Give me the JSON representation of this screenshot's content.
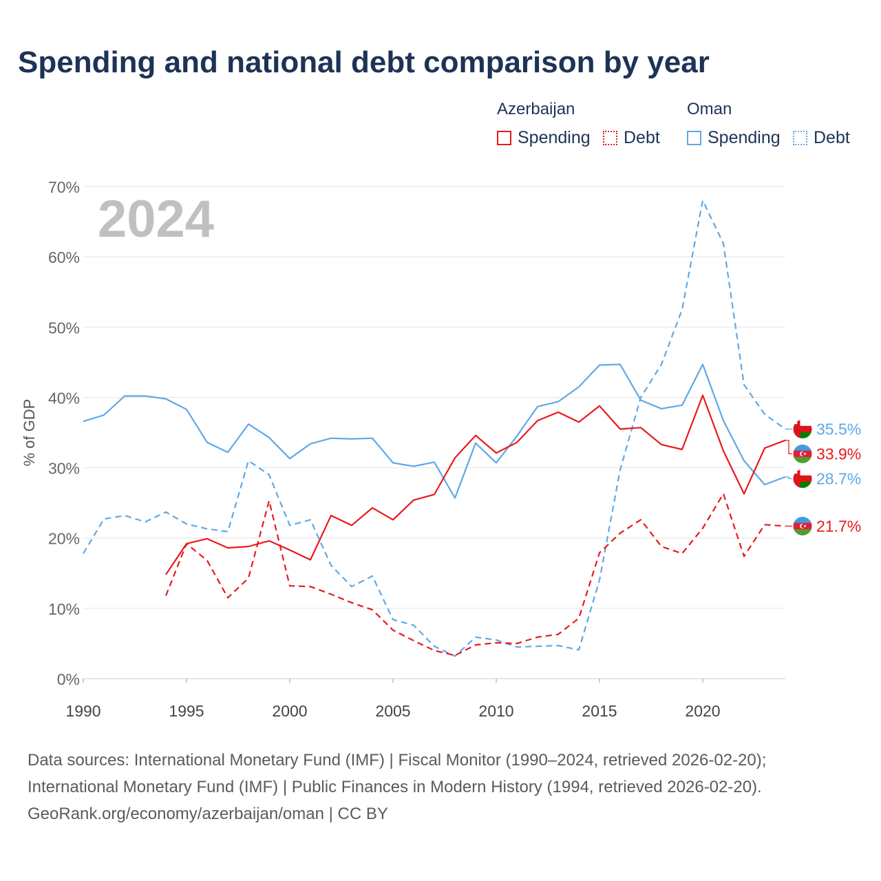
{
  "title": "Spending and national debt comparison by year",
  "legend": {
    "group1": "Azerbaijan",
    "group2": "Oman",
    "spending": "Spending",
    "debt": "Debt"
  },
  "colors": {
    "azerbaijan": "#e8191c",
    "oman": "#5ea8e6"
  },
  "chart_data": {
    "type": "line",
    "ylabel": "% of GDP",
    "xlim": [
      1990,
      2024
    ],
    "ylim": [
      0,
      70
    ],
    "x_ticks": [
      1990,
      1995,
      2000,
      2005,
      2010,
      2015,
      2020
    ],
    "y_ticks": [
      0,
      10,
      20,
      30,
      40,
      50,
      60,
      70
    ],
    "y_tick_labels": [
      "0%",
      "10%",
      "20%",
      "30%",
      "40%",
      "50%",
      "60%",
      "70%"
    ],
    "year_label": "2024",
    "series": [
      {
        "name": "Oman Spending",
        "country": "Oman",
        "metric": "Spending",
        "dashed": false,
        "end_label": "28.7%",
        "x": [
          1990,
          1991,
          1992,
          1993,
          1994,
          1995,
          1996,
          1997,
          1998,
          1999,
          2000,
          2001,
          2002,
          2003,
          2004,
          2005,
          2006,
          2007,
          2008,
          2009,
          2010,
          2011,
          2012,
          2013,
          2014,
          2015,
          2016,
          2017,
          2018,
          2019,
          2020,
          2021,
          2022,
          2023,
          2024
        ],
        "values": [
          36.6,
          37.5,
          40.2,
          40.2,
          39.8,
          38.3,
          33.6,
          32.2,
          36.2,
          34.3,
          31.3,
          33.4,
          34.2,
          34.1,
          34.2,
          30.7,
          30.2,
          30.8,
          25.7,
          33.5,
          30.7,
          34.5,
          38.7,
          39.4,
          41.5,
          44.6,
          44.7,
          39.6,
          38.4,
          38.9,
          44.7,
          36.7,
          31.0,
          27.6,
          28.7
        ]
      },
      {
        "name": "Oman Debt",
        "country": "Oman",
        "metric": "Debt",
        "dashed": true,
        "end_label": "35.5%",
        "x": [
          1990,
          1991,
          1992,
          1993,
          1994,
          1995,
          1996,
          1997,
          1998,
          1999,
          2000,
          2001,
          2002,
          2003,
          2004,
          2005,
          2006,
          2007,
          2008,
          2009,
          2010,
          2011,
          2012,
          2013,
          2014,
          2015,
          2016,
          2017,
          2018,
          2019,
          2020,
          2021,
          2022,
          2023,
          2024
        ],
        "values": [
          17.8,
          22.7,
          23.2,
          22.3,
          23.7,
          22.0,
          21.3,
          20.9,
          31.0,
          29.0,
          21.8,
          22.6,
          16.1,
          13.1,
          14.6,
          8.4,
          7.6,
          4.6,
          3.2,
          5.9,
          5.5,
          4.5,
          4.6,
          4.7,
          4.1,
          14.0,
          29.7,
          40.0,
          44.7,
          52.5,
          68.0,
          61.9,
          41.8,
          37.6,
          35.5
        ]
      },
      {
        "name": "Azerbaijan Spending",
        "country": "Azerbaijan",
        "metric": "Spending",
        "dashed": false,
        "end_label": "33.9%",
        "x": [
          1994,
          1995,
          1996,
          1997,
          1998,
          1999,
          2000,
          2001,
          2002,
          2003,
          2004,
          2005,
          2006,
          2007,
          2008,
          2009,
          2010,
          2011,
          2012,
          2013,
          2014,
          2015,
          2016,
          2017,
          2018,
          2019,
          2020,
          2021,
          2022,
          2023,
          2024
        ],
        "values": [
          14.8,
          19.2,
          19.9,
          18.6,
          18.8,
          19.6,
          18.3,
          16.9,
          23.2,
          21.8,
          24.3,
          22.6,
          25.4,
          26.2,
          31.4,
          34.6,
          32.1,
          33.6,
          36.7,
          37.9,
          36.5,
          38.8,
          35.5,
          35.7,
          33.3,
          32.6,
          40.3,
          32.4,
          26.3,
          32.8,
          33.9
        ]
      },
      {
        "name": "Azerbaijan Debt",
        "country": "Azerbaijan",
        "metric": "Debt",
        "dashed": true,
        "end_label": "21.7%",
        "x": [
          1994,
          1995,
          1996,
          1997,
          1998,
          1999,
          2000,
          2001,
          2002,
          2003,
          2004,
          2005,
          2006,
          2007,
          2008,
          2009,
          2010,
          2011,
          2012,
          2013,
          2014,
          2015,
          2016,
          2017,
          2018,
          2019,
          2020,
          2021,
          2022,
          2023,
          2024
        ],
        "values": [
          11.8,
          19.2,
          16.8,
          11.5,
          14.3,
          25.3,
          13.2,
          13.1,
          12.0,
          10.8,
          9.8,
          6.9,
          5.4,
          4.0,
          3.3,
          4.8,
          5.1,
          5.0,
          5.9,
          6.3,
          8.6,
          17.9,
          20.7,
          22.6,
          18.8,
          17.8,
          21.4,
          26.3,
          17.4,
          21.9,
          21.7
        ]
      }
    ]
  },
  "sources": {
    "line1": "Data sources: International Monetary Fund (IMF) | Fiscal Monitor (1990–2024, retrieved 2026-02-20);",
    "line2": "International Monetary Fund (IMF) | Public Finances in Modern History (1994, retrieved 2026-02-20).",
    "line3": "GeoRank.org/economy/azerbaijan/oman | CC BY"
  }
}
